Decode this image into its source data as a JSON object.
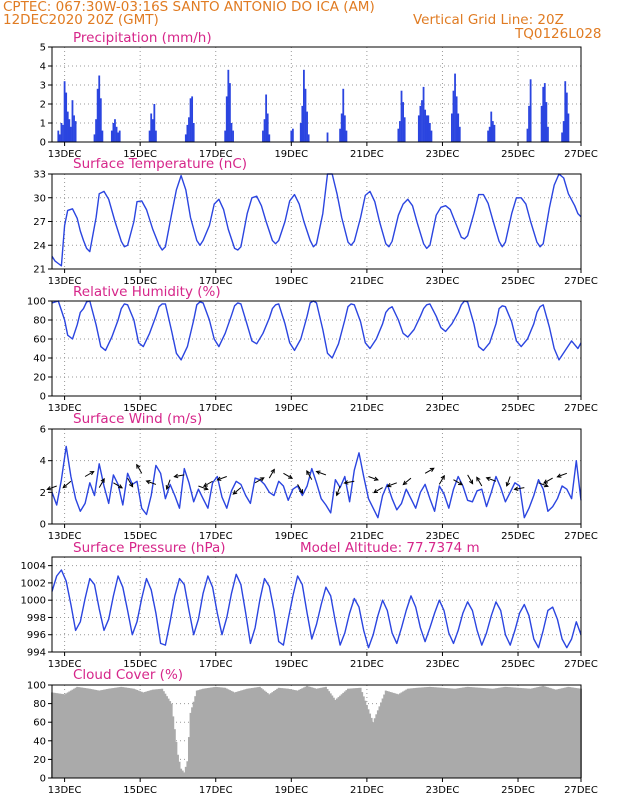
{
  "header": {
    "line1": "CPTEC:   067:30W-03:16S   SANTO ANTONIO DO ICA (AM)",
    "line2": "12DEC2020 20Z (GMT)",
    "grid_note": "Vertical Grid Line: 20Z",
    "code": "TQ0126L028"
  },
  "colors": {
    "header": "#e07b22",
    "title": "#d6268a",
    "line": "#2b45e0",
    "bar": "#2b45e0",
    "cloud": "#aaaaaa",
    "grid": "#999999"
  },
  "chart_data": [
    {
      "type": "bar",
      "title": "Precipitation (mm/h)",
      "ylim": [
        0,
        5
      ],
      "yticks": [
        0,
        1,
        2,
        3,
        4,
        5
      ],
      "xticks": [
        "13DEC",
        "15DEC",
        "17DEC",
        "19DEC",
        "21DEC",
        "23DEC",
        "25DEC",
        "27DEC"
      ],
      "x_hours": [
        4,
        5,
        6,
        7,
        8,
        9,
        10,
        11,
        12,
        13,
        14,
        15,
        27,
        28,
        29,
        30,
        31,
        32,
        38,
        39,
        40,
        41,
        42,
        43,
        62,
        63,
        64,
        65,
        66,
        85,
        86,
        87,
        88,
        89,
        90,
        110,
        111,
        112,
        113,
        114,
        115,
        134,
        135,
        136,
        137,
        138,
        152,
        153,
        158,
        159,
        160,
        161,
        162,
        163,
        175,
        183,
        184,
        185,
        186,
        187,
        220,
        221,
        222,
        223,
        224,
        233,
        234,
        235,
        236,
        237,
        238,
        239,
        240,
        241,
        254,
        255,
        256,
        257,
        258,
        259,
        277,
        278,
        279,
        280,
        281,
        302,
        303,
        304,
        311,
        312,
        313,
        314,
        315,
        324,
        325,
        326,
        327,
        328
      ],
      "values": [
        0.6,
        0.4,
        1.0,
        0.9,
        3.2,
        2.6,
        1.6,
        1.2,
        0.8,
        2.2,
        1.4,
        1.1,
        0.4,
        1.2,
        2.8,
        3.5,
        2.3,
        0.6,
        0.6,
        1.0,
        1.2,
        0.8,
        0.5,
        0.6,
        0.6,
        1.5,
        1.2,
        2.0,
        0.6,
        0.4,
        0.9,
        1.3,
        2.3,
        2.4,
        1.0,
        0.6,
        2.4,
        3.8,
        3.1,
        1.0,
        0.6,
        0.6,
        1.2,
        2.5,
        1.5,
        0.4,
        0.6,
        0.7,
        1.0,
        1.9,
        3.8,
        2.8,
        1.6,
        0.4,
        0.5,
        0.7,
        1.5,
        2.8,
        1.4,
        0.6,
        0.7,
        1.1,
        2.7,
        2.1,
        1.3,
        1.4,
        1.9,
        2.2,
        2.9,
        1.7,
        1.4,
        1.4,
        1.0,
        0.6,
        1.5,
        2.7,
        3.6,
        2.4,
        1.5,
        0.8,
        0.6,
        0.8,
        1.6,
        1.1,
        0.9,
        0.7,
        1.9,
        3.3,
        1.9,
        2.9,
        3.1,
        2.1,
        0.8,
        0.5,
        1.1,
        3.2,
        2.6,
        1.5
      ]
    },
    {
      "type": "line",
      "title": "Surface Temperature (nC)",
      "ylim": [
        21,
        33
      ],
      "yticks": [
        21,
        24,
        27,
        30,
        33
      ],
      "xticks": [
        "13DEC",
        "15DEC",
        "17DEC",
        "19DEC",
        "21DEC",
        "23DEC",
        "25DEC",
        "27DEC"
      ],
      "x_hours": [
        0,
        2,
        4,
        6,
        8,
        10,
        13,
        16,
        18,
        20,
        22,
        24,
        28,
        30,
        33,
        36,
        40,
        44,
        46,
        48,
        52,
        54,
        57,
        60,
        64,
        68,
        70,
        72,
        76,
        79,
        82,
        85,
        88,
        92,
        94,
        96,
        100,
        103,
        106,
        109,
        112,
        116,
        118,
        120,
        124,
        127,
        130,
        133,
        136,
        140,
        142,
        144,
        148,
        151,
        154,
        157,
        160,
        164,
        166,
        168,
        172,
        175,
        178,
        181,
        184,
        188,
        190,
        192,
        196,
        199,
        202,
        205,
        208,
        212,
        214,
        216,
        220,
        223,
        226,
        229,
        232,
        236,
        238,
        240,
        244,
        247,
        250,
        253,
        256,
        260,
        262,
        264,
        268,
        271,
        274,
        277,
        280,
        284,
        286,
        288,
        292,
        295,
        298,
        301,
        304,
        308,
        310,
        312,
        316,
        319,
        322,
        325,
        328,
        332,
        334,
        336
      ],
      "values": [
        22.6,
        22.0,
        21.7,
        21.4,
        26.5,
        28.4,
        28.6,
        27.4,
        25.8,
        24.6,
        23.6,
        23.2,
        27.5,
        30.5,
        30.8,
        29.8,
        27.0,
        24.5,
        23.8,
        24.0,
        27.0,
        29.5,
        29.6,
        28.5,
        26.0,
        24.0,
        23.4,
        23.8,
        28.0,
        31.0,
        32.8,
        31.0,
        27.5,
        24.6,
        24.0,
        24.6,
        26.5,
        29.2,
        29.8,
        28.5,
        26.0,
        23.6,
        23.4,
        23.8,
        28.0,
        30.0,
        30.2,
        29.0,
        27.0,
        24.6,
        24.2,
        24.6,
        27.0,
        29.6,
        30.4,
        29.2,
        27.0,
        24.6,
        23.8,
        24.2,
        28.0,
        33.0,
        33.5,
        30.5,
        27.5,
        24.4,
        24.0,
        24.5,
        27.5,
        30.3,
        30.8,
        29.5,
        27.0,
        24.2,
        23.8,
        24.5,
        27.8,
        29.2,
        29.8,
        29.0,
        26.8,
        24.2,
        23.6,
        24.0,
        27.8,
        28.8,
        29.0,
        28.5,
        27.0,
        25.0,
        24.8,
        25.2,
        28.0,
        30.4,
        30.4,
        29.3,
        27.2,
        24.5,
        23.8,
        24.4,
        28.0,
        30.0,
        30.0,
        29.2,
        27.0,
        24.4,
        23.8,
        24.2,
        28.8,
        31.6,
        33.2,
        32.5,
        30.5,
        29.0,
        28.0,
        27.6
      ],
      "color": "#2b45e0"
    },
    {
      "type": "line",
      "title": "Relative Humidity (%)",
      "ylim": [
        0,
        100
      ],
      "yticks": [
        0,
        20,
        40,
        60,
        80,
        100
      ],
      "xticks": [
        "13DEC",
        "15DEC",
        "17DEC",
        "19DEC",
        "21DEC",
        "23DEC",
        "25DEC",
        "27DEC"
      ],
      "x_hours": [
        0,
        4,
        8,
        10,
        13,
        16,
        18,
        20,
        22,
        24,
        28,
        31,
        34,
        38,
        42,
        44,
        46,
        48,
        52,
        55,
        58,
        62,
        66,
        68,
        70,
        72,
        76,
        79,
        82,
        86,
        90,
        92,
        94,
        96,
        100,
        103,
        106,
        110,
        114,
        116,
        118,
        120,
        124,
        127,
        130,
        134,
        138,
        140,
        142,
        144,
        148,
        151,
        154,
        158,
        162,
        164,
        166,
        168,
        172,
        175,
        178,
        182,
        186,
        188,
        190,
        192,
        196,
        199,
        202,
        206,
        210,
        212,
        214,
        216,
        220,
        223,
        226,
        230,
        234,
        236,
        238,
        240,
        244,
        247,
        250,
        254,
        258,
        260,
        262,
        264,
        268,
        271,
        274,
        278,
        282,
        284,
        286,
        288,
        292,
        295,
        298,
        302,
        306,
        308,
        310,
        312,
        316,
        319,
        322,
        326,
        330,
        332,
        334,
        336
      ],
      "values": [
        98,
        100,
        80,
        64,
        60,
        75,
        88,
        92,
        99,
        100,
        75,
        52,
        48,
        62,
        80,
        92,
        97,
        96,
        80,
        56,
        52,
        66,
        84,
        94,
        97,
        97,
        68,
        45,
        38,
        52,
        80,
        96,
        99,
        98,
        80,
        60,
        52,
        66,
        85,
        95,
        98,
        97,
        75,
        58,
        55,
        66,
        82,
        92,
        96,
        97,
        76,
        56,
        48,
        60,
        84,
        98,
        100,
        98,
        70,
        45,
        40,
        55,
        80,
        94,
        97,
        96,
        78,
        56,
        50,
        60,
        76,
        88,
        92,
        94,
        80,
        66,
        62,
        70,
        84,
        92,
        96,
        97,
        84,
        72,
        68,
        76,
        88,
        96,
        100,
        99,
        76,
        52,
        48,
        56,
        76,
        92,
        95,
        94,
        78,
        58,
        52,
        60,
        76,
        88,
        94,
        96,
        72,
        50,
        38,
        48,
        58,
        54,
        50,
        56
      ],
      "color": "#2b45e0"
    },
    {
      "type": "line",
      "title": "Surface Wind (m/s)",
      "ylim": [
        0,
        6
      ],
      "yticks": [
        0,
        2,
        4,
        6
      ],
      "xticks": [
        "13DEC",
        "15DEC",
        "17DEC",
        "19DEC",
        "21DEC",
        "23DEC",
        "25DEC",
        "27DEC"
      ],
      "x_hours": [
        0,
        3,
        6,
        9,
        12,
        15,
        18,
        21,
        24,
        27,
        30,
        33,
        36,
        39,
        42,
        45,
        48,
        51,
        54,
        57,
        60,
        63,
        66,
        69,
        72,
        75,
        78,
        81,
        84,
        87,
        90,
        93,
        96,
        99,
        102,
        105,
        108,
        111,
        114,
        117,
        120,
        123,
        126,
        129,
        132,
        135,
        138,
        141,
        144,
        147,
        150,
        153,
        156,
        159,
        162,
        165,
        168,
        171,
        174,
        177,
        180,
        183,
        186,
        189,
        192,
        195,
        198,
        201,
        204,
        207,
        210,
        213,
        216,
        219,
        222,
        225,
        228,
        231,
        234,
        237,
        240,
        243,
        246,
        249,
        252,
        255,
        258,
        261,
        264,
        267,
        270,
        273,
        276,
        279,
        282,
        285,
        288,
        291,
        294,
        297,
        300,
        303,
        306,
        309,
        312,
        315,
        318,
        321,
        324,
        327,
        330,
        333,
        336
      ],
      "values": [
        2.0,
        1.2,
        2.8,
        4.9,
        3.0,
        1.6,
        0.8,
        1.3,
        2.6,
        1.8,
        3.8,
        2.4,
        1.3,
        3.1,
        2.5,
        1.2,
        3.2,
        2.5,
        2.7,
        1.0,
        0.6,
        1.8,
        3.7,
        3.2,
        1.6,
        2.5,
        1.8,
        1.0,
        3.5,
        2.6,
        1.4,
        2.2,
        1.6,
        1.0,
        2.6,
        3.0,
        1.7,
        1.0,
        2.1,
        2.7,
        2.5,
        1.8,
        1.3,
        2.9,
        2.8,
        2.5,
        2.0,
        1.8,
        2.7,
        2.4,
        1.5,
        2.2,
        2.4,
        1.8,
        2.4,
        3.5,
        2.6,
        1.6,
        1.2,
        0.7,
        2.8,
        2.3,
        3.0,
        1.4,
        3.4,
        4.5,
        3.0,
        1.6,
        1.0,
        0.4,
        1.8,
        2.5,
        1.6,
        0.9,
        1.3,
        2.2,
        1.6,
        1.0,
        2.0,
        2.5,
        1.6,
        0.8,
        2.4,
        1.9,
        1.0,
        2.2,
        3.0,
        2.4,
        1.5,
        1.4,
        2.1,
        2.2,
        1.1,
        2.0,
        3.0,
        2.3,
        1.4,
        2.0,
        2.6,
        2.4,
        0.4,
        1.0,
        1.8,
        2.8,
        2.2,
        0.8,
        1.1,
        1.6,
        2.4,
        2.2,
        1.6,
        4.0,
        1.5
      ],
      "color": "#2b45e0"
    },
    {
      "type": "line",
      "title": "Surface Pressure (hPa)",
      "annotation": "Model Altitude: 77.7374 m",
      "ylim": [
        994,
        1005
      ],
      "yticks": [
        994,
        996,
        998,
        1000,
        1002,
        1004
      ],
      "xticks": [
        "13DEC",
        "15DEC",
        "17DEC",
        "19DEC",
        "21DEC",
        "23DEC",
        "25DEC",
        "27DEC"
      ],
      "x_hours": [
        0,
        3,
        6,
        9,
        12,
        15,
        18,
        21,
        24,
        27,
        30,
        33,
        36,
        39,
        42,
        45,
        48,
        51,
        54,
        57,
        60,
        63,
        66,
        69,
        72,
        75,
        78,
        81,
        84,
        87,
        90,
        93,
        96,
        99,
        102,
        105,
        108,
        111,
        114,
        117,
        120,
        123,
        126,
        129,
        132,
        135,
        138,
        141,
        144,
        147,
        150,
        153,
        156,
        159,
        162,
        165,
        168,
        171,
        174,
        177,
        180,
        183,
        186,
        189,
        192,
        195,
        198,
        201,
        204,
        207,
        210,
        213,
        216,
        219,
        222,
        225,
        228,
        231,
        234,
        237,
        240,
        243,
        246,
        249,
        252,
        255,
        258,
        261,
        264,
        267,
        270,
        273,
        276,
        279,
        282,
        285,
        288,
        291,
        294,
        297,
        300,
        303,
        306,
        309,
        312,
        315,
        318,
        321,
        324,
        327,
        330,
        333,
        336
      ],
      "values": [
        1001.0,
        1002.8,
        1003.5,
        1002.2,
        999.5,
        996.5,
        997.5,
        1000.2,
        1002.5,
        1001.8,
        999.0,
        996.5,
        997.8,
        1000.5,
        1002.8,
        1001.5,
        998.8,
        996.0,
        997.5,
        1000.2,
        1002.5,
        1001.2,
        998.5,
        995.0,
        994.8,
        997.5,
        1000.5,
        1002.5,
        1001.8,
        998.8,
        996.0,
        997.8,
        1000.8,
        1002.8,
        1001.5,
        998.5,
        996.0,
        998.0,
        1000.8,
        1003.0,
        1001.8,
        998.5,
        995.0,
        996.8,
        1000.0,
        1002.5,
        1001.6,
        998.8,
        995.2,
        994.8,
        997.8,
        1000.5,
        1002.8,
        1001.8,
        998.5,
        995.5,
        997.2,
        999.5,
        1001.5,
        1000.5,
        997.5,
        994.8,
        996.2,
        998.5,
        1000.2,
        999.2,
        996.5,
        994.5,
        996.0,
        998.2,
        1000.0,
        998.8,
        996.2,
        995.0,
        996.8,
        998.8,
        1000.5,
        999.2,
        996.8,
        995.2,
        996.8,
        998.5,
        1000.0,
        998.8,
        996.2,
        995.0,
        996.5,
        998.5,
        999.8,
        998.8,
        996.5,
        994.8,
        996.2,
        998.2,
        999.8,
        998.8,
        996.0,
        994.8,
        996.5,
        998.5,
        999.5,
        998.2,
        995.5,
        994.5,
        996.5,
        998.8,
        999.2,
        997.8,
        995.5,
        994.5,
        995.5,
        997.5,
        996.0
      ],
      "color": "#2b45e0"
    },
    {
      "type": "bar",
      "title": "Cloud Cover (%)",
      "ylim": [
        0,
        100
      ],
      "yticks": [
        0,
        20,
        40,
        60,
        80,
        100
      ],
      "xticks": [
        "13DEC",
        "15DEC",
        "17DEC",
        "19DEC",
        "21DEC",
        "23DEC",
        "25DEC",
        "27DEC"
      ],
      "x_hours": [
        0,
        8,
        16,
        24,
        30,
        36,
        44,
        52,
        58,
        64,
        70,
        76,
        80,
        82,
        84,
        86,
        88,
        92,
        96,
        104,
        110,
        116,
        124,
        132,
        138,
        144,
        150,
        156,
        162,
        168,
        174,
        180,
        188,
        196,
        204,
        212,
        220,
        226,
        232,
        240,
        248,
        256,
        264,
        272,
        280,
        288,
        296,
        304,
        312,
        320,
        328,
        336
      ],
      "values": [
        92,
        90,
        98,
        96,
        94,
        96,
        98,
        96,
        92,
        95,
        96,
        80,
        25,
        10,
        6,
        18,
        70,
        94,
        96,
        98,
        97,
        92,
        96,
        98,
        90,
        97,
        96,
        94,
        99,
        96,
        98,
        84,
        96,
        97,
        60,
        94,
        90,
        96,
        97,
        98,
        97,
        96,
        98,
        97,
        96,
        98,
        97,
        96,
        99,
        95,
        98,
        96
      ],
      "color": "#aaaaaa"
    }
  ]
}
